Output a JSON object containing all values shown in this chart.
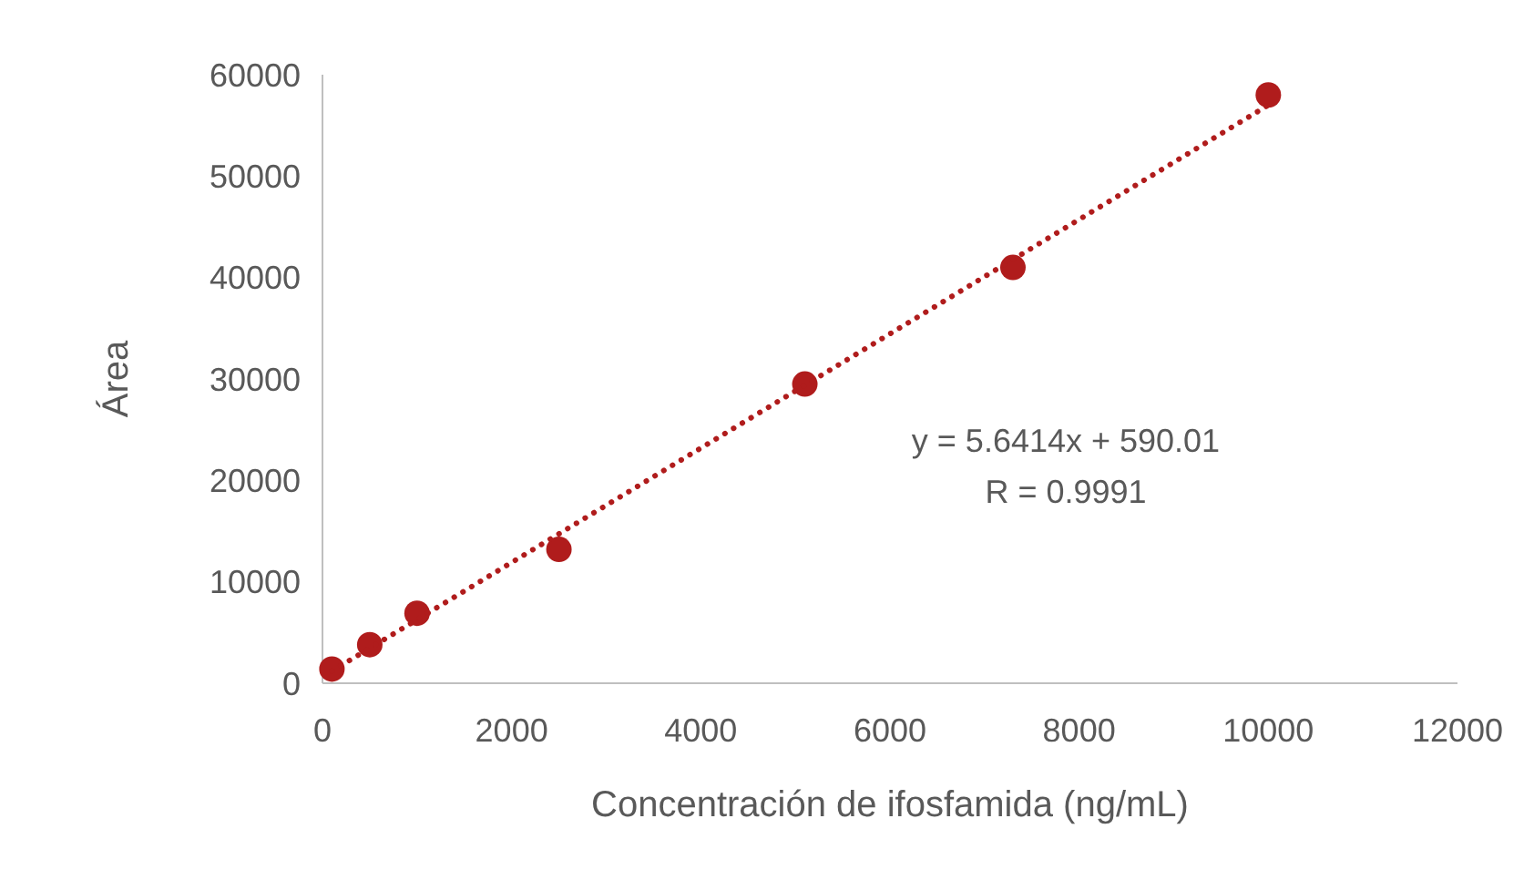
{
  "chart_data": {
    "type": "scatter",
    "xlabel": "Concentración de ifosfamida (ng/mL)",
    "ylabel": "Área",
    "x": [
      100,
      500,
      1000,
      2500,
      5100,
      7300,
      10000
    ],
    "series": [
      {
        "color": "#b01c1c",
        "values": [
          1400,
          3800,
          6900,
          13200,
          29500,
          41000,
          58000
        ],
        "marker": "circle"
      },
      {
        "type": "line",
        "color": "#b01c1c",
        "x": [
          100,
          10000
        ],
        "values": [
          1200,
          57000
        ],
        "line_style": "dotted",
        "marker": "none"
      }
    ],
    "annotations": [
      "y = 5.6414x + 590.01",
      "R = 0.9991"
    ],
    "xlim": [
      0,
      12000
    ],
    "xticks": [
      0,
      2000,
      4000,
      6000,
      8000,
      10000,
      12000
    ],
    "ylim": [
      0,
      60000
    ],
    "yticks": [
      0,
      10000,
      20000,
      30000,
      40000,
      50000,
      60000
    ],
    "grid": false
  }
}
